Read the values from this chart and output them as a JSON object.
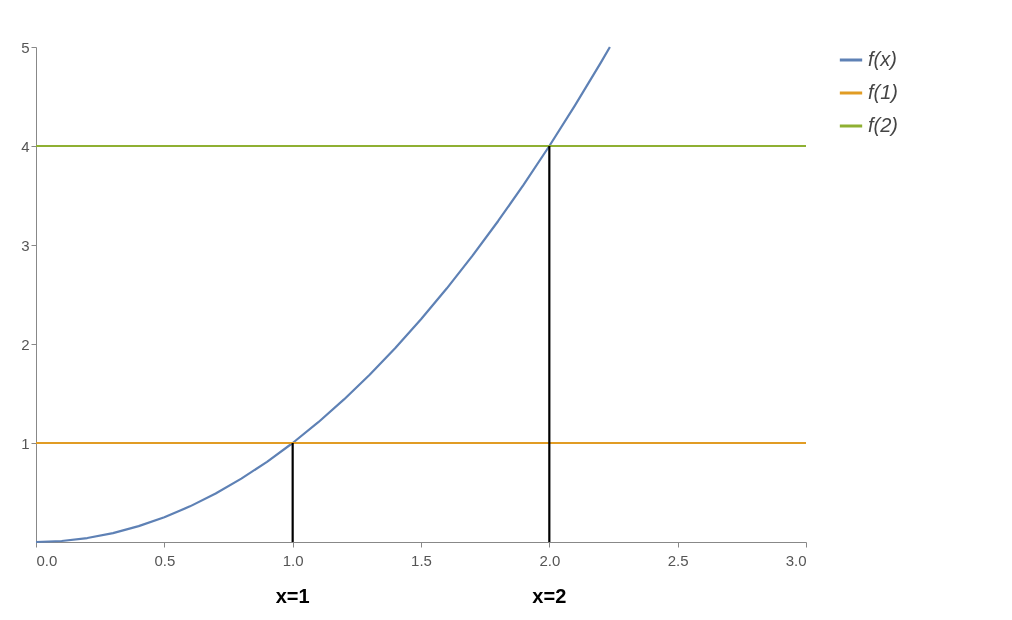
{
  "chart_data": {
    "type": "line",
    "xlim": [
      0,
      3
    ],
    "ylim": [
      0,
      5
    ],
    "xticks": [
      {
        "value": 0,
        "label": "0.0"
      },
      {
        "value": 0.5,
        "label": "0.5"
      },
      {
        "value": 1,
        "label": "1.0"
      },
      {
        "value": 1.5,
        "label": "1.5"
      },
      {
        "value": 2,
        "label": "2.0"
      },
      {
        "value": 2.5,
        "label": "2.5"
      },
      {
        "value": 3,
        "label": "3.0"
      }
    ],
    "yticks": [
      1,
      2,
      3,
      4,
      5
    ],
    "grid": false,
    "legend": "right",
    "marker": "none",
    "line_style": "solid",
    "series": [
      {
        "name": "f(x)",
        "color": "#5e81b5",
        "x": [
          0,
          0.1,
          0.2,
          0.3,
          0.4,
          0.5,
          0.6,
          0.7,
          0.8,
          0.9,
          1,
          1.1,
          1.2,
          1.3,
          1.4,
          1.5,
          1.6,
          1.7,
          1.8,
          1.9,
          2,
          2.1,
          2.2,
          2.236
        ],
        "values": [
          0,
          0.01,
          0.04,
          0.09,
          0.16,
          0.25,
          0.36,
          0.49,
          0.64,
          0.81,
          1,
          1.21,
          1.44,
          1.69,
          1.96,
          2.25,
          2.56,
          2.89,
          3.24,
          3.61,
          4,
          4.41,
          4.84,
          5
        ]
      },
      {
        "name": "f(1)",
        "color": "#e19c24",
        "x": [
          0,
          3
        ],
        "values": [
          1,
          1
        ]
      },
      {
        "name": "f(2)",
        "color": "#8fb032",
        "x": [
          0,
          3
        ],
        "values": [
          4,
          4
        ]
      },
      {
        "color": "#000000",
        "x": [
          1,
          1
        ],
        "values": [
          0,
          1
        ]
      },
      {
        "color": "#000000",
        "x": [
          2,
          2
        ],
        "values": [
          0,
          4
        ]
      }
    ],
    "annotations": [
      "x=1",
      "x=2"
    ]
  }
}
